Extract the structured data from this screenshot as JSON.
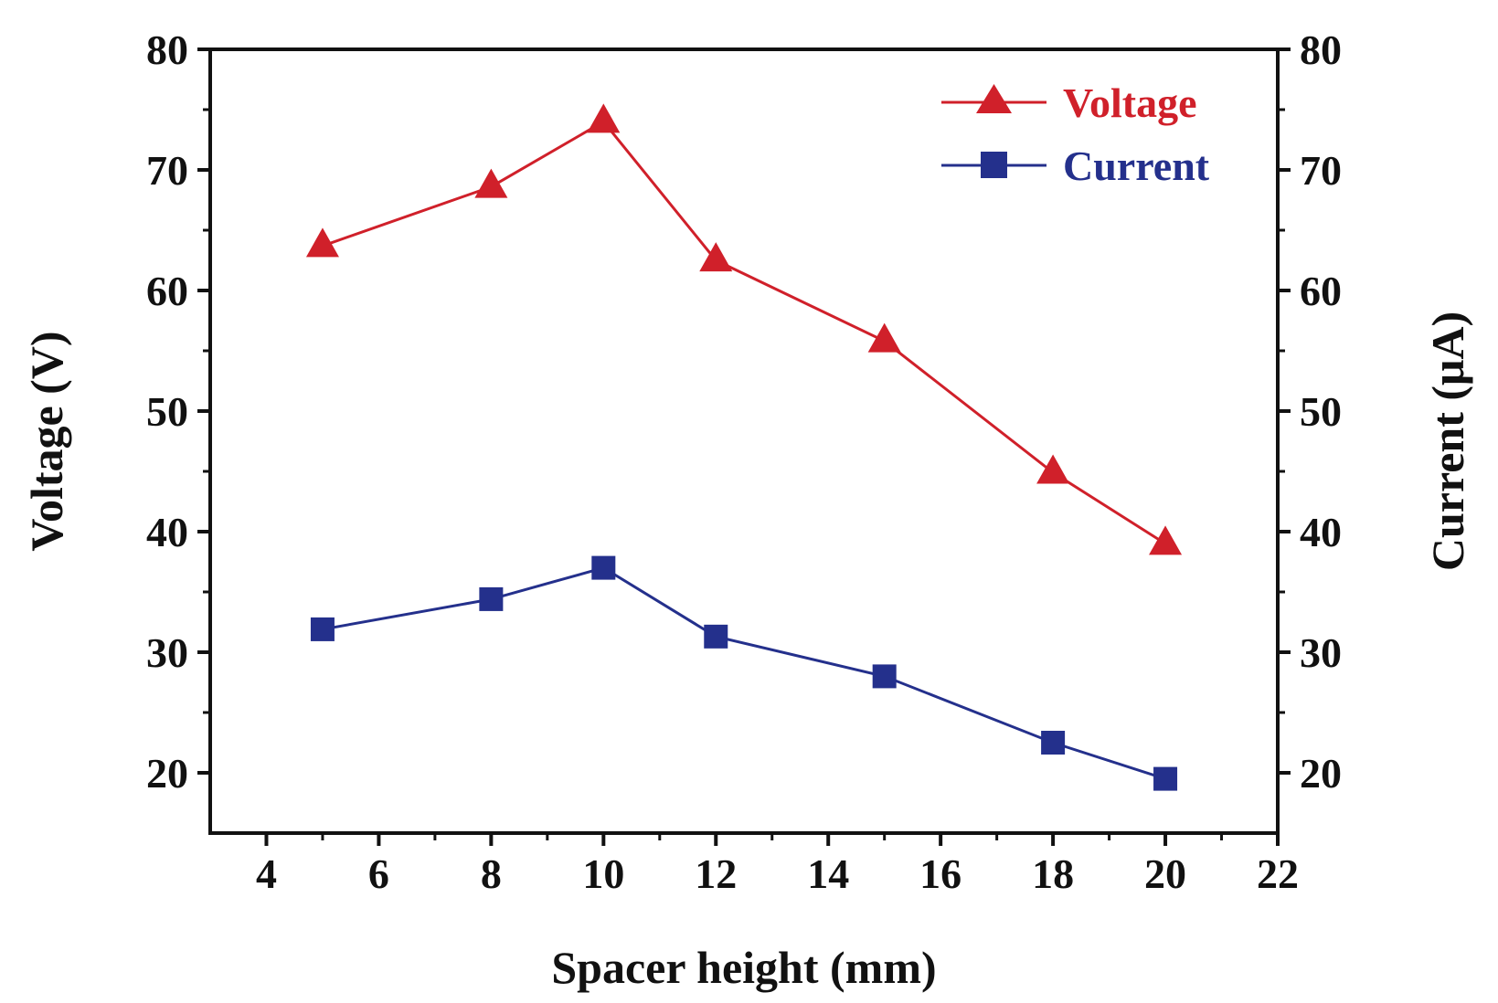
{
  "chart_data": {
    "type": "line",
    "xlabel": "Spacer height (mm)",
    "ylabel": "Voltage (V)",
    "y2label": "Current (μA)",
    "xlim": [
      3,
      22
    ],
    "ylim": [
      15,
      80
    ],
    "y2lim": [
      15,
      80
    ],
    "x_ticks": [
      "4",
      "6",
      "8",
      "10",
      "12",
      "14",
      "16",
      "18",
      "20",
      "22"
    ],
    "y_ticks": [
      "20",
      "30",
      "40",
      "50",
      "60",
      "70",
      "80"
    ],
    "y2_ticks": [
      "20",
      "30",
      "40",
      "50",
      "60",
      "70",
      "80"
    ],
    "grid": false,
    "legend_position": "top-right",
    "x": [
      5,
      8,
      10,
      12,
      15,
      18,
      20
    ],
    "series": [
      {
        "name": "Voltage",
        "axis": "left",
        "color": "#d0202a",
        "marker": "triangle",
        "values": [
          63.7,
          68.6,
          74.0,
          62.5,
          55.8,
          44.9,
          39.0
        ]
      },
      {
        "name": "Current",
        "axis": "right",
        "color": "#24308c",
        "marker": "square",
        "values": [
          31.9,
          34.4,
          37.0,
          31.3,
          28.0,
          22.5,
          19.5
        ]
      }
    ]
  }
}
